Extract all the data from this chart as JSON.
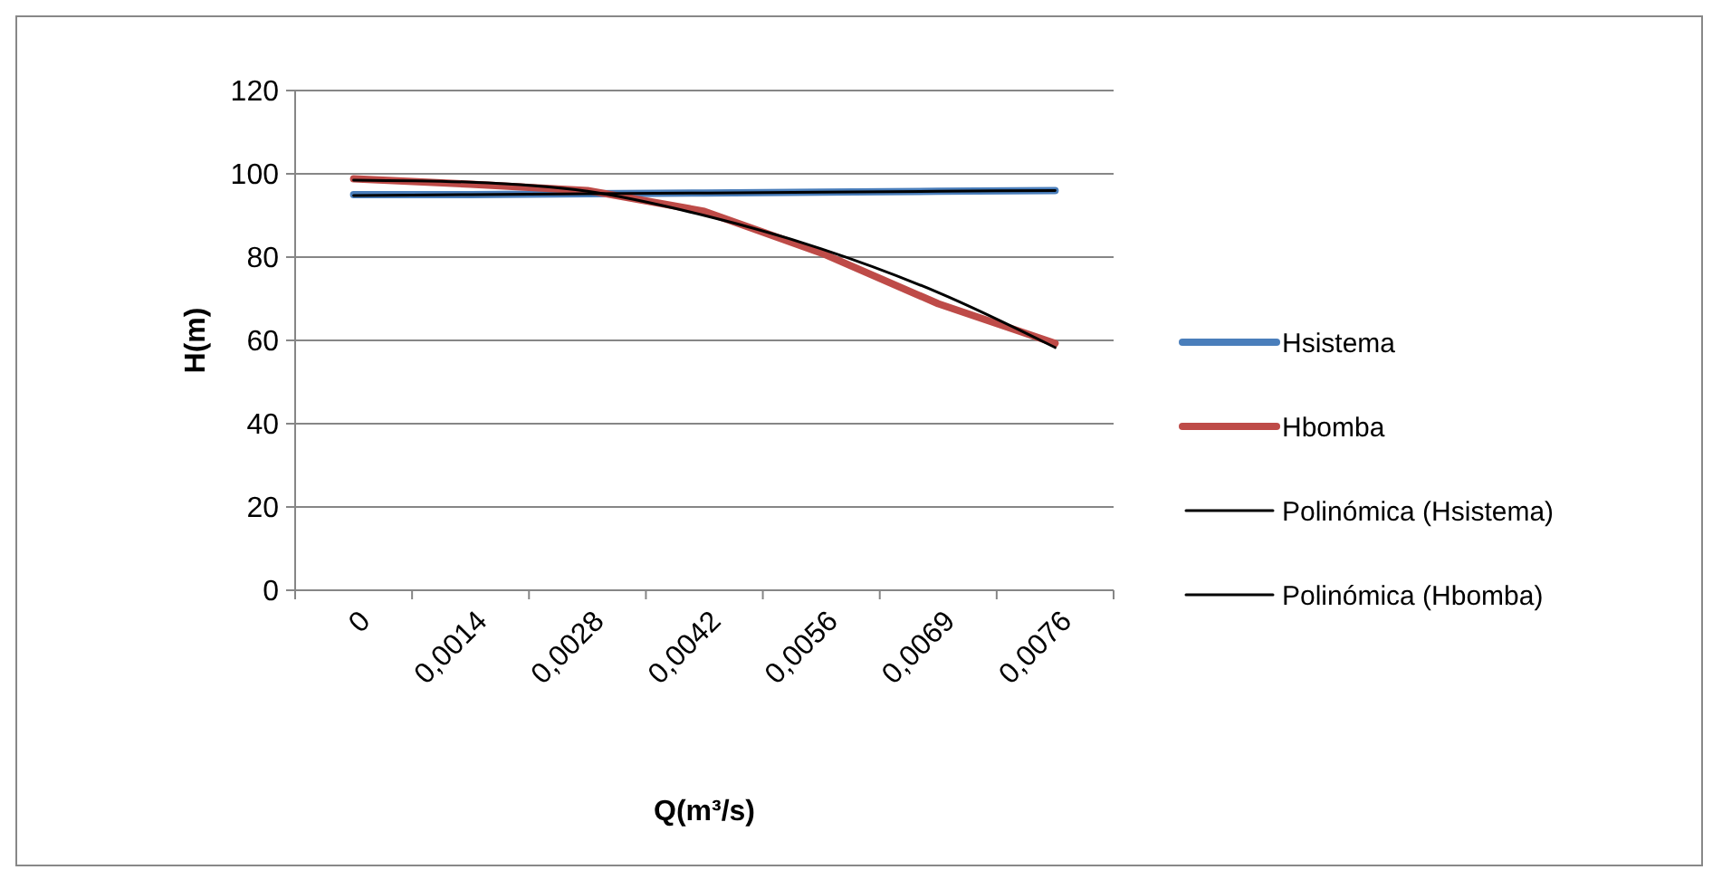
{
  "chart_data": {
    "type": "line",
    "xlabel": "Q(m³/s)",
    "ylabel": "H(m)",
    "categories": [
      "0",
      "0,0014",
      "0,0028",
      "0,0042",
      "0,0056",
      "0,0069",
      "0,0076"
    ],
    "series": [
      {
        "name": "Hsistema",
        "color": "#4a7ebb",
        "values": [
          95,
          95,
          95.2,
          95.4,
          95.6,
          95.8,
          96
        ]
      },
      {
        "name": "Hbomba",
        "color": "#be4b48",
        "values": [
          98.8,
          97.5,
          96,
          91,
          81,
          68.8,
          59.3
        ]
      },
      {
        "name": "Polinómica (Hsistema)",
        "color": "#000000",
        "values": [
          94.8,
          95,
          95.2,
          95.4,
          95.6,
          95.8,
          96
        ]
      },
      {
        "name": "Polinómica (Hbomba)",
        "color": "#000000",
        "values": [
          98.5,
          98,
          95.8,
          90,
          82,
          71.5,
          58.3
        ]
      }
    ],
    "ylim": [
      0,
      120
    ],
    "yticks": [
      0,
      20,
      40,
      60,
      80,
      100,
      120
    ],
    "grid": "y",
    "legend": "right",
    "marker": "none",
    "line_style": "solid"
  }
}
